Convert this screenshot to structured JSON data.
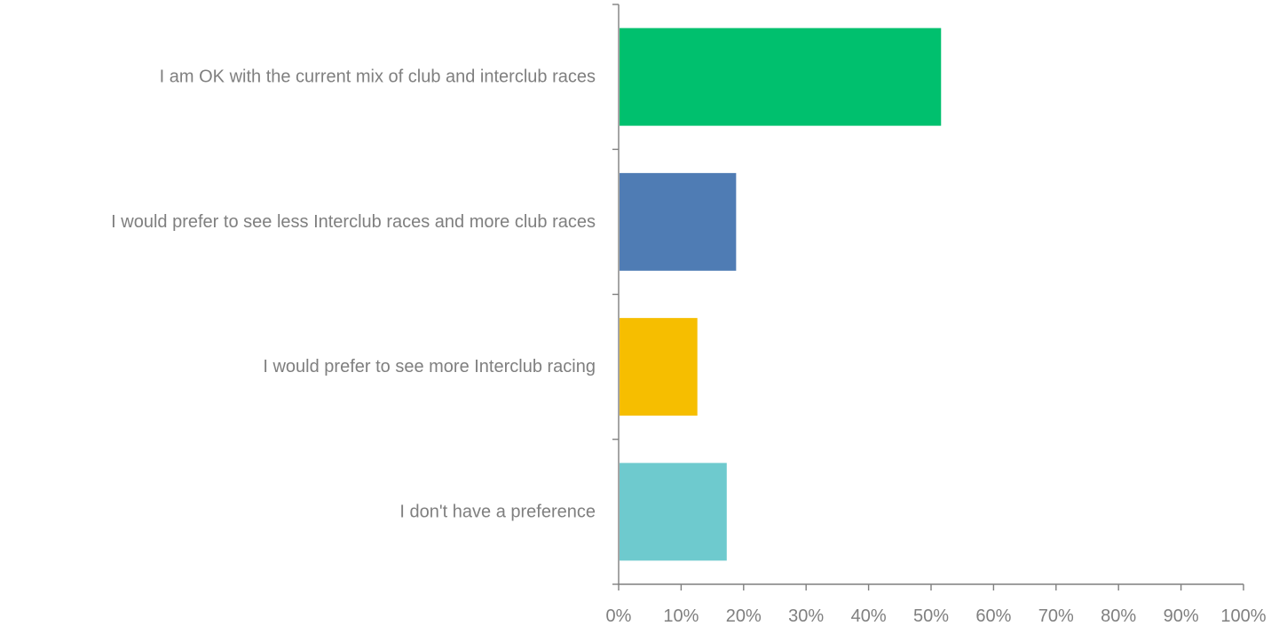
{
  "chart_data": {
    "type": "bar",
    "orientation": "horizontal",
    "categories": [
      "I am OK with the current mix of club and interclub races",
      "I would prefer to see less Interclub races and more club races",
      "I would prefer to see more Interclub racing",
      "I don't have a preference"
    ],
    "values": [
      51.6,
      18.8,
      12.6,
      17.3
    ],
    "colors": [
      "#00c06e",
      "#4f7cb4",
      "#f6be00",
      "#6ecace"
    ],
    "xlim": [
      0,
      100
    ],
    "x_ticks": [
      "0%",
      "10%",
      "20%",
      "30%",
      "40%",
      "50%",
      "60%",
      "70%",
      "80%",
      "90%",
      "100%"
    ],
    "title": "",
    "xlabel": "",
    "ylabel": "",
    "grid": false,
    "legend": "none"
  }
}
